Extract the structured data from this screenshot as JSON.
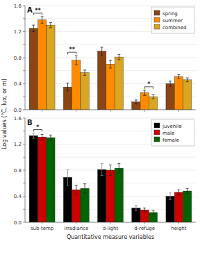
{
  "chart_data": [
    {
      "type": "bar",
      "title": "A",
      "ylabel": "Log values (°C, lux, or m)",
      "categories": [
        "sub-temp",
        "irradiance",
        "d-light",
        "d-refuge",
        "height"
      ],
      "series": [
        {
          "name": "spring",
          "color": "#8B4513",
          "values": [
            1.25,
            0.35,
            0.9,
            0.12,
            0.4
          ],
          "errors": [
            0.05,
            0.06,
            0.06,
            0.03,
            0.04
          ]
        },
        {
          "name": "summer",
          "color": "#FF8C00",
          "values": [
            1.38,
            0.76,
            0.7,
            0.26,
            0.51
          ],
          "errors": [
            0.05,
            0.07,
            0.06,
            0.04,
            0.03
          ]
        },
        {
          "name": "combined",
          "color": "#DAA520",
          "values": [
            1.3,
            0.57,
            0.81,
            0.2,
            0.46
          ],
          "errors": [
            0.04,
            0.04,
            0.04,
            0.03,
            0.03
          ]
        }
      ],
      "annotations": [
        {
          "text": "**",
          "category": "sub-temp",
          "series": [
            "spring",
            "summer"
          ]
        },
        {
          "text": "**",
          "category": "irradiance",
          "series": [
            "spring",
            "summer"
          ]
        },
        {
          "text": "*",
          "category": "d-refuge",
          "series": [
            "summer",
            "combined"
          ]
        }
      ],
      "ylim": [
        0,
        1.6
      ],
      "yticks": [
        {
          "value": 0,
          "label": "0.0"
        },
        {
          "value": 0.2,
          "label": null
        },
        0.4,
        {
          "value": 0.6,
          "label": null
        },
        0.8,
        {
          "value": 1.0,
          "label": null
        },
        1.2,
        {
          "value": 1.4,
          "label": null
        },
        1.6
      ],
      "grid": true,
      "legend": "upper right",
      "tick_labels": "y"
    },
    {
      "type": "bar",
      "title": "B",
      "xlabel": "Quantitative measure variables",
      "categories": [
        "sub-temp",
        "irradiance",
        "d-light",
        "d-refuge",
        "height"
      ],
      "series": [
        {
          "name": "juvenile",
          "color": "#000000",
          "values": [
            1.33,
            0.69,
            0.81,
            0.22,
            0.4
          ],
          "errors": [
            0.04,
            0.12,
            0.09,
            0.04,
            0.05
          ]
        },
        {
          "name": "male",
          "color": "#CC0000",
          "values": [
            1.31,
            0.5,
            0.8,
            0.19,
            0.46
          ],
          "errors": [
            0.04,
            0.07,
            0.08,
            0.03,
            0.04
          ]
        },
        {
          "name": "female",
          "color": "#006400",
          "values": [
            1.3,
            0.52,
            0.83,
            0.15,
            0.48
          ],
          "errors": [
            0.04,
            0.07,
            0.07,
            0.03,
            0.04
          ]
        }
      ],
      "annotations": [
        {
          "text": "*",
          "category": "sub-temp",
          "series": [
            "juvenile",
            "male"
          ]
        }
      ],
      "ylim": [
        0,
        1.6
      ],
      "yticks": [
        {
          "value": 0,
          "label": "0.0"
        },
        {
          "value": 0.2,
          "label": null
        },
        0.4,
        {
          "value": 0.6,
          "label": null
        },
        0.8,
        {
          "value": 1.0,
          "label": null
        },
        1.2,
        {
          "value": 1.4,
          "label": null
        },
        1.6
      ],
      "grid": true,
      "legend": "upper right"
    }
  ]
}
